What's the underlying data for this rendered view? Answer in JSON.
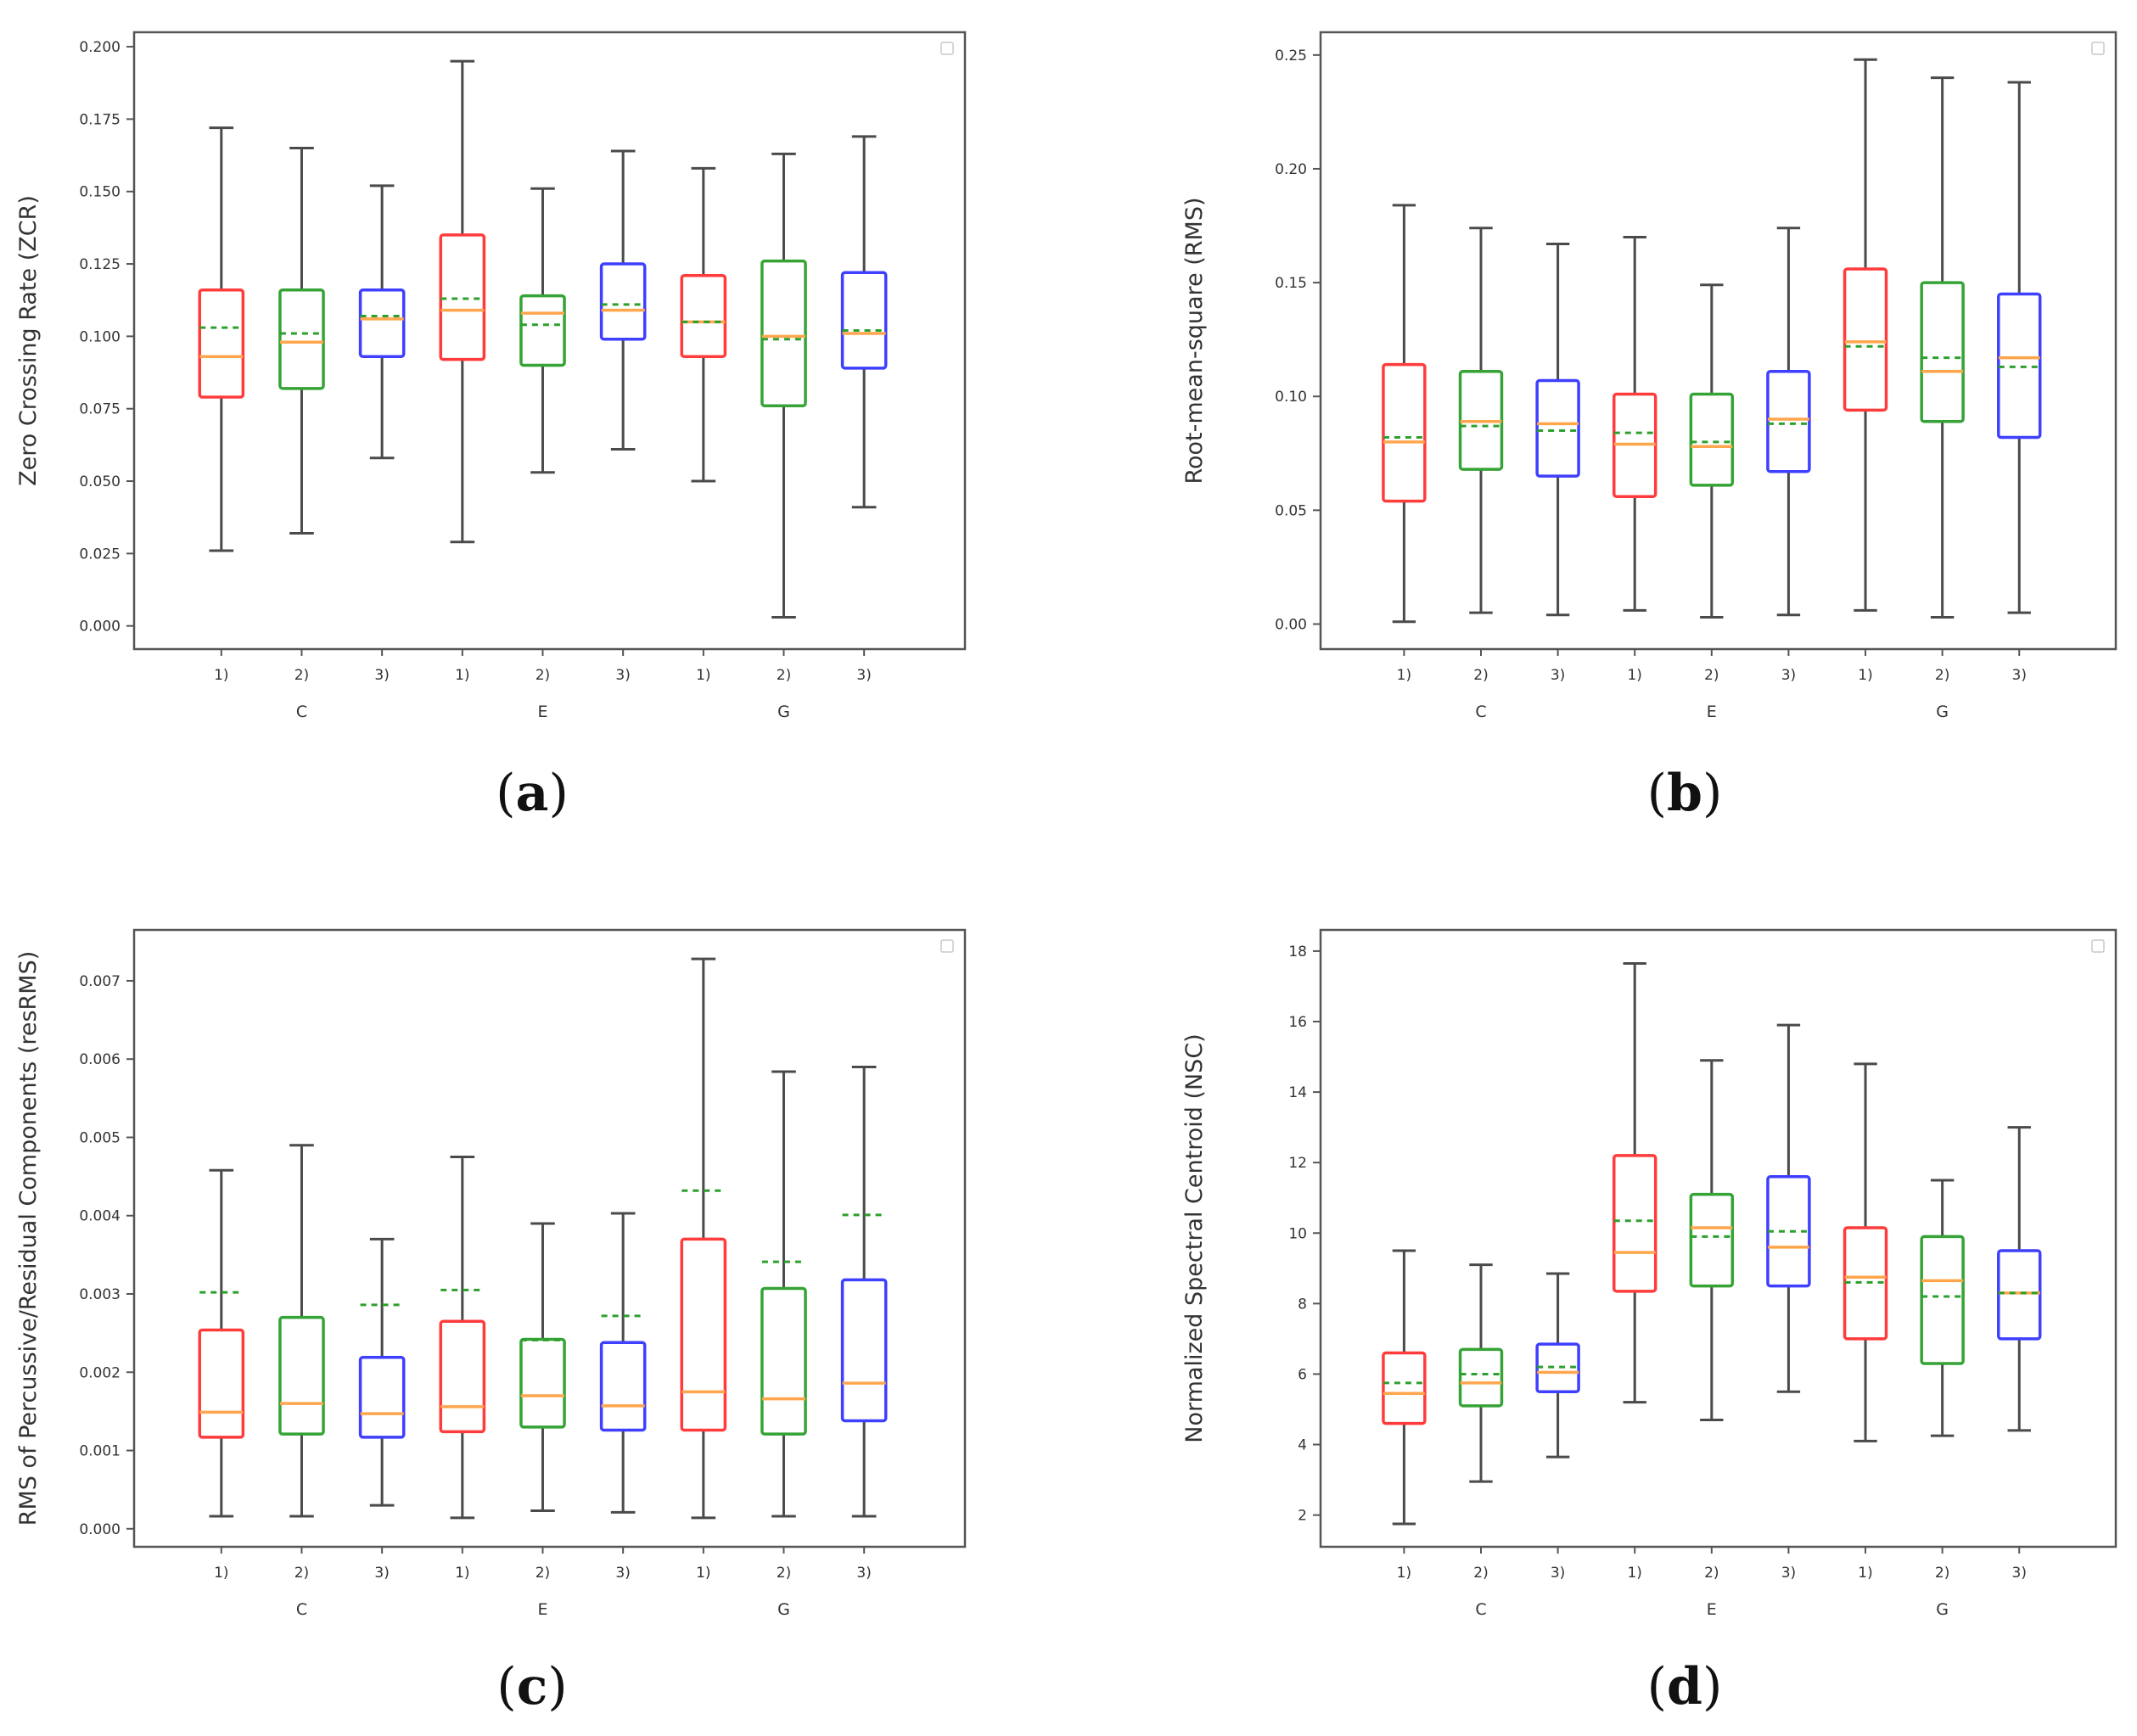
{
  "figure": {
    "captions": [
      "(a)",
      "(b)",
      "(c)",
      "(d)"
    ],
    "caption_letters": [
      "a",
      "b",
      "c",
      "d"
    ]
  },
  "colors": {
    "red": "#ff3b3b",
    "green": "#35a335",
    "blue": "#3f3fff",
    "median": "#ffa64d",
    "mean": "#2ca02c",
    "whisker": "#4a4a4a",
    "frame": "#555555"
  },
  "chart_data": [
    {
      "type": "box",
      "panel": "a",
      "ylabel": "Zero Crossing Rate (ZCR)",
      "xlabel": "",
      "ylim": [
        -0.008,
        0.205
      ],
      "yticks": [
        0.0,
        0.025,
        0.05,
        0.075,
        0.1,
        0.125,
        0.15,
        0.175,
        0.2
      ],
      "ytick_labels": [
        "0.000",
        "0.025",
        "0.050",
        "0.075",
        "0.100",
        "0.125",
        "0.150",
        "0.175",
        "0.200"
      ],
      "categories": [
        "1)",
        "2)",
        "3)",
        "1)",
        "2)",
        "3)",
        "1)",
        "2)",
        "3)"
      ],
      "groups": [
        "C",
        "E",
        "G"
      ],
      "box_colors": [
        "red",
        "green",
        "blue",
        "red",
        "green",
        "blue",
        "red",
        "green",
        "blue"
      ],
      "boxes": [
        {
          "whislo": 0.026,
          "q1": 0.079,
          "med": 0.093,
          "mean": 0.103,
          "q3": 0.116,
          "whishi": 0.172
        },
        {
          "whislo": 0.032,
          "q1": 0.082,
          "med": 0.098,
          "mean": 0.101,
          "q3": 0.116,
          "whishi": 0.165
        },
        {
          "whislo": 0.058,
          "q1": 0.093,
          "med": 0.106,
          "mean": 0.107,
          "q3": 0.116,
          "whishi": 0.152
        },
        {
          "whislo": 0.029,
          "q1": 0.092,
          "med": 0.109,
          "mean": 0.113,
          "q3": 0.135,
          "whishi": 0.195
        },
        {
          "whislo": 0.053,
          "q1": 0.09,
          "med": 0.108,
          "mean": 0.104,
          "q3": 0.114,
          "whishi": 0.151
        },
        {
          "whislo": 0.061,
          "q1": 0.099,
          "med": 0.109,
          "mean": 0.111,
          "q3": 0.125,
          "whishi": 0.164
        },
        {
          "whislo": 0.05,
          "q1": 0.093,
          "med": 0.105,
          "mean": 0.105,
          "q3": 0.121,
          "whishi": 0.158
        },
        {
          "whislo": 0.003,
          "q1": 0.076,
          "med": 0.1,
          "mean": 0.099,
          "q3": 0.126,
          "whishi": 0.163
        },
        {
          "whislo": 0.041,
          "q1": 0.089,
          "med": 0.101,
          "mean": 0.102,
          "q3": 0.122,
          "whishi": 0.169
        }
      ]
    },
    {
      "type": "box",
      "panel": "b",
      "ylabel": "Root-mean-square (RMS)",
      "xlabel": "",
      "ylim": [
        -0.011,
        0.26
      ],
      "yticks": [
        0.0,
        0.05,
        0.1,
        0.15,
        0.2,
        0.25
      ],
      "ytick_labels": [
        "0.00",
        "0.05",
        "0.10",
        "0.15",
        "0.20",
        "0.25"
      ],
      "categories": [
        "1)",
        "2)",
        "3)",
        "1)",
        "2)",
        "3)",
        "1)",
        "2)",
        "3)"
      ],
      "groups": [
        "C",
        "E",
        "G"
      ],
      "box_colors": [
        "red",
        "green",
        "blue",
        "red",
        "green",
        "blue",
        "red",
        "green",
        "blue"
      ],
      "boxes": [
        {
          "whislo": 0.001,
          "q1": 0.054,
          "med": 0.08,
          "mean": 0.082,
          "q3": 0.114,
          "whishi": 0.184
        },
        {
          "whislo": 0.005,
          "q1": 0.068,
          "med": 0.089,
          "mean": 0.087,
          "q3": 0.111,
          "whishi": 0.174
        },
        {
          "whislo": 0.004,
          "q1": 0.065,
          "med": 0.088,
          "mean": 0.085,
          "q3": 0.107,
          "whishi": 0.167
        },
        {
          "whislo": 0.006,
          "q1": 0.056,
          "med": 0.079,
          "mean": 0.084,
          "q3": 0.101,
          "whishi": 0.17
        },
        {
          "whislo": 0.003,
          "q1": 0.061,
          "med": 0.078,
          "mean": 0.08,
          "q3": 0.101,
          "whishi": 0.149
        },
        {
          "whislo": 0.004,
          "q1": 0.067,
          "med": 0.09,
          "mean": 0.088,
          "q3": 0.111,
          "whishi": 0.174
        },
        {
          "whislo": 0.006,
          "q1": 0.094,
          "med": 0.124,
          "mean": 0.122,
          "q3": 0.156,
          "whishi": 0.248
        },
        {
          "whislo": 0.003,
          "q1": 0.089,
          "med": 0.111,
          "mean": 0.117,
          "q3": 0.15,
          "whishi": 0.24
        },
        {
          "whislo": 0.005,
          "q1": 0.082,
          "med": 0.117,
          "mean": 0.113,
          "q3": 0.145,
          "whishi": 0.238
        }
      ]
    },
    {
      "type": "box",
      "panel": "c",
      "ylabel": "RMS of Percussive/Residual Components (resRMS)",
      "xlabel": "",
      "ylim": [
        -0.00023,
        0.00765
      ],
      "yticks": [
        0.0,
        0.001,
        0.002,
        0.003,
        0.004,
        0.005,
        0.006,
        0.007
      ],
      "ytick_labels": [
        "0.000",
        "0.001",
        "0.002",
        "0.003",
        "0.004",
        "0.005",
        "0.006",
        "0.007"
      ],
      "categories": [
        "1)",
        "2)",
        "3)",
        "1)",
        "2)",
        "3)",
        "1)",
        "2)",
        "3)"
      ],
      "groups": [
        "C",
        "E",
        "G"
      ],
      "box_colors": [
        "red",
        "green",
        "blue",
        "red",
        "green",
        "blue",
        "red",
        "green",
        "blue"
      ],
      "boxes": [
        {
          "whislo": 0.00016,
          "q1": 0.00117,
          "med": 0.00149,
          "mean": 0.00302,
          "q3": 0.00254,
          "whishi": 0.00458
        },
        {
          "whislo": 0.00016,
          "q1": 0.00121,
          "med": 0.0016,
          "mean": null,
          "q3": 0.0027,
          "whishi": 0.0049
        },
        {
          "whislo": 0.0003,
          "q1": 0.00117,
          "med": 0.00147,
          "mean": 0.00286,
          "q3": 0.00219,
          "whishi": 0.0037
        },
        {
          "whislo": 0.00014,
          "q1": 0.00124,
          "med": 0.00156,
          "mean": 0.00305,
          "q3": 0.00265,
          "whishi": 0.00475
        },
        {
          "whislo": 0.00023,
          "q1": 0.0013,
          "med": 0.0017,
          "mean": 0.00241,
          "q3": 0.00242,
          "whishi": 0.0039
        },
        {
          "whislo": 0.00021,
          "q1": 0.00126,
          "med": 0.00157,
          "mean": 0.00272,
          "q3": 0.00238,
          "whishi": 0.00403
        },
        {
          "whislo": 0.00014,
          "q1": 0.00126,
          "med": 0.00175,
          "mean": 0.00432,
          "q3": 0.0037,
          "whishi": 0.00728
        },
        {
          "whislo": 0.00016,
          "q1": 0.00121,
          "med": 0.00166,
          "mean": 0.00341,
          "q3": 0.00307,
          "whishi": 0.00584
        },
        {
          "whislo": 0.00016,
          "q1": 0.00138,
          "med": 0.00186,
          "mean": 0.00401,
          "q3": 0.00318,
          "whishi": 0.0059
        }
      ]
    },
    {
      "type": "box",
      "panel": "d",
      "ylabel": "Normalized Spectral Centroid (NSC)",
      "xlabel": "",
      "ylim": [
        1.1,
        18.6
      ],
      "yticks": [
        2,
        4,
        6,
        8,
        10,
        12,
        14,
        16,
        18
      ],
      "ytick_labels": [
        "2",
        "4",
        "6",
        "8",
        "10",
        "12",
        "14",
        "16",
        "18"
      ],
      "categories": [
        "1)",
        "2)",
        "3)",
        "1)",
        "2)",
        "3)",
        "1)",
        "2)",
        "3)"
      ],
      "groups": [
        "C",
        "E",
        "G"
      ],
      "box_colors": [
        "red",
        "green",
        "blue",
        "red",
        "green",
        "blue",
        "red",
        "green",
        "blue"
      ],
      "boxes": [
        {
          "whislo": 1.75,
          "q1": 4.6,
          "med": 5.45,
          "mean": 5.75,
          "q3": 6.6,
          "whishi": 9.5
        },
        {
          "whislo": 2.95,
          "q1": 5.1,
          "med": 5.75,
          "mean": 6.0,
          "q3": 6.7,
          "whishi": 9.1
        },
        {
          "whislo": 3.65,
          "q1": 5.5,
          "med": 6.05,
          "mean": 6.2,
          "q3": 6.85,
          "whishi": 8.85
        },
        {
          "whislo": 5.2,
          "q1": 8.35,
          "med": 9.45,
          "mean": 10.35,
          "q3": 12.2,
          "whishi": 17.65
        },
        {
          "whislo": 4.7,
          "q1": 8.5,
          "med": 10.15,
          "mean": 9.9,
          "q3": 11.1,
          "whishi": 14.9
        },
        {
          "whislo": 5.5,
          "q1": 8.5,
          "med": 9.6,
          "mean": 10.05,
          "q3": 11.6,
          "whishi": 15.9
        },
        {
          "whislo": 4.1,
          "q1": 7.0,
          "med": 8.75,
          "mean": 8.6,
          "q3": 10.15,
          "whishi": 14.8
        },
        {
          "whislo": 4.25,
          "q1": 6.3,
          "med": 8.65,
          "mean": 8.2,
          "q3": 9.9,
          "whishi": 11.5
        },
        {
          "whislo": 4.4,
          "q1": 7.0,
          "med": 8.3,
          "mean": 8.3,
          "q3": 9.5,
          "whishi": 13.0
        }
      ]
    }
  ]
}
